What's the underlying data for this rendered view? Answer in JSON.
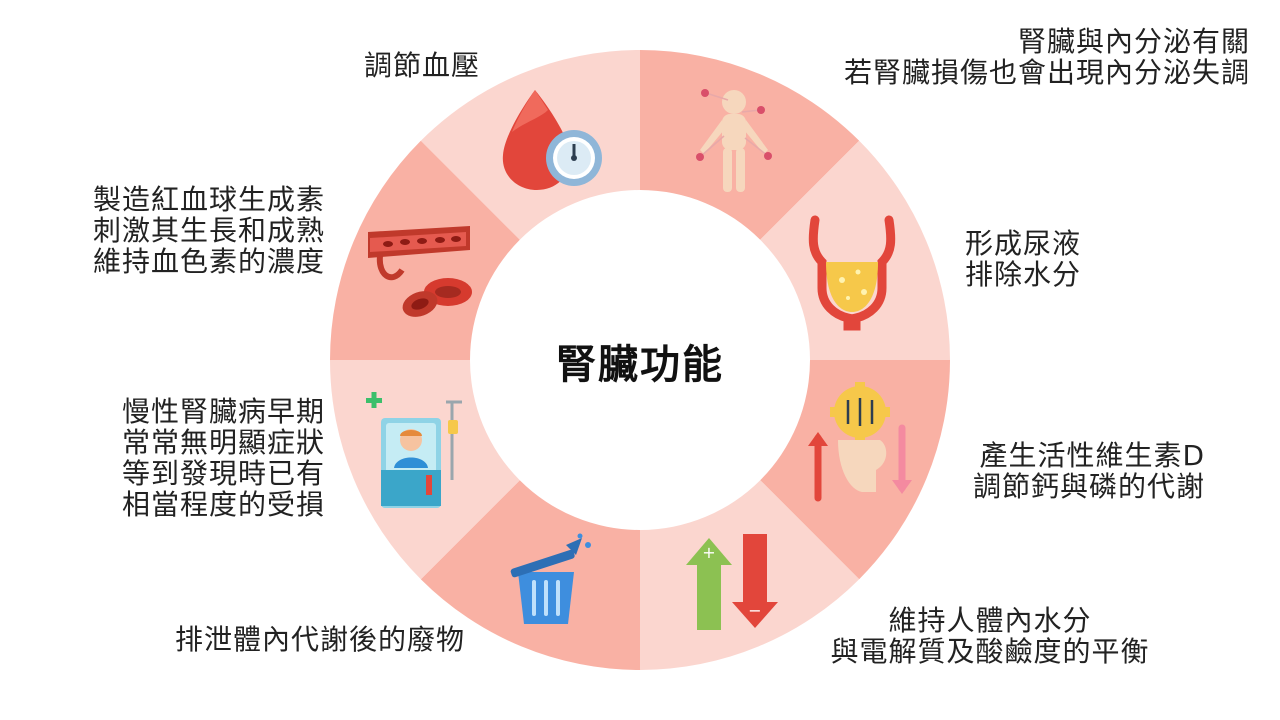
{
  "title": "腎臟功能",
  "functions": [
    {
      "id": "blood-pressure",
      "icon": "blood-pressure-gauge-icon",
      "lines": [
        "調節血壓"
      ]
    },
    {
      "id": "endocrine",
      "icon": "human-body-icon",
      "lines": [
        "腎臟與內分泌有關",
        "若腎臟損傷也會出現內分泌失調"
      ]
    },
    {
      "id": "urine",
      "icon": "bladder-icon",
      "lines": [
        "形成尿液",
        "排除水分"
      ]
    },
    {
      "id": "vitamin-d",
      "icon": "gear-head-arrows-icon",
      "lines": [
        "產生活性維生素D",
        "調節鈣與磷的代謝"
      ]
    },
    {
      "id": "balance",
      "icon": "up-down-arrows-icon",
      "lines": [
        "維持人體內水分",
        "與電解質及酸鹼度的平衡"
      ]
    },
    {
      "id": "waste",
      "icon": "trash-bin-icon",
      "lines": [
        "排泄體內代謝後的廢物"
      ]
    },
    {
      "id": "ckd-warning",
      "icon": "hospital-bed-patient-icon",
      "lines": [
        "慢性腎臟病早期",
        "常常無明顯症狀",
        "等到發現時已有",
        "相當程度的受損"
      ]
    },
    {
      "id": "erythropoietin",
      "icon": "blood-vessel-cells-icon",
      "lines": [
        "製造紅血球生成素",
        "刺激其生長和成熟",
        "維持血色素的濃度"
      ]
    }
  ],
  "colors": {
    "light": "#fbd6cf",
    "medium": "#f9b1a4",
    "dark": "#f4928a",
    "text": "#222222"
  }
}
